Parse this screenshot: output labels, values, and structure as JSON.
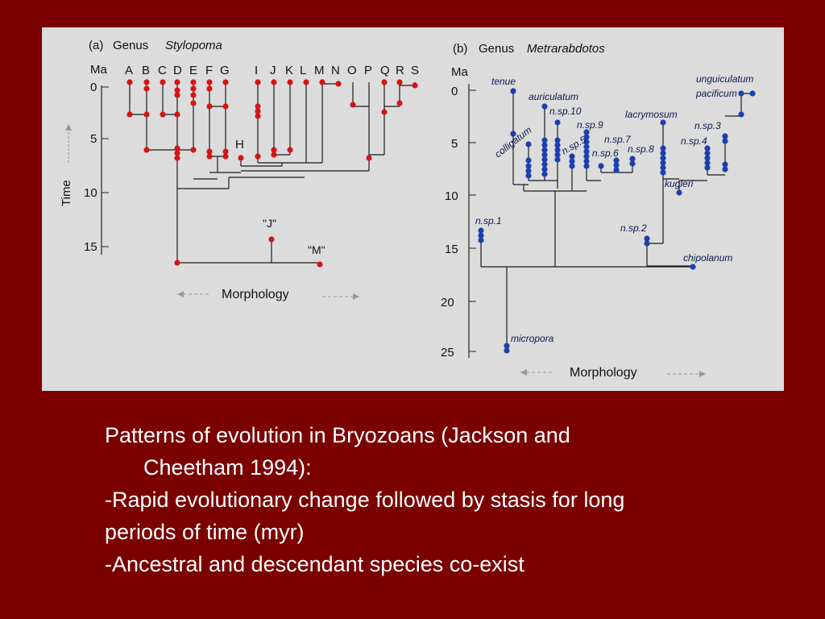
{
  "panel_a": {
    "label": "(a)",
    "title_prefix": "Genus",
    "genus": "Stylopoma",
    "axis_unit": "Ma",
    "axis_label": "Time",
    "ticks": [
      "0",
      "5",
      "10",
      "15"
    ],
    "species_letters": [
      "A",
      "B",
      "C",
      "D",
      "E",
      "F",
      "G",
      "I",
      "J",
      "K",
      "L",
      "M",
      "N",
      "O",
      "P",
      "Q",
      "R",
      "S"
    ],
    "extra_labels": {
      "H": "H",
      "J_ancestor": "\"J\"",
      "M_ancestor": "\"M\""
    },
    "x_label": "Morphology"
  },
  "panel_b": {
    "label": "(b)",
    "title_prefix": "Genus",
    "genus": "Metrarabdotos",
    "axis_unit": "Ma",
    "ticks": [
      "0",
      "5",
      "10",
      "15",
      "20",
      "25"
    ],
    "species": {
      "tenue": "tenue",
      "auriculatum": "auriculatum",
      "colligatum": "colligatum",
      "n_sp_10": "n.sp.10",
      "n_sp_9": "n.sp.9",
      "n_sp_5": "n.sp.5",
      "n_sp_7": "n.sp.7",
      "n_sp_6": "n.sp.6",
      "n_sp_8": "n.sp.8",
      "lacrymosum": "lacrymosum",
      "unguiculatum": "unguiculatum",
      "pacificum": "pacificum",
      "n_sp_3": "n.sp.3",
      "n_sp_4": "n.sp.4",
      "kugleri": "kugleri",
      "n_sp_1": "n.sp.1",
      "n_sp_2": "n.sp.2",
      "chipolanum": "chipolanum",
      "micropora": "micropora"
    },
    "x_label": "Morphology"
  },
  "colors": {
    "background": "#7b0000",
    "figure_bg": "#dcdcdc",
    "panel_a_dots": "#d41414",
    "panel_b_dots": "#1b3fae"
  },
  "caption": {
    "line1": "Patterns of evolution in Bryozoans (Jackson and",
    "line2": "Cheetham 1994):",
    "line3": "-Rapid evolutionary change followed by stasis for long",
    "line4": "periods of time (myr)",
    "line5": "-Ancestral and descendant species co-exist"
  }
}
